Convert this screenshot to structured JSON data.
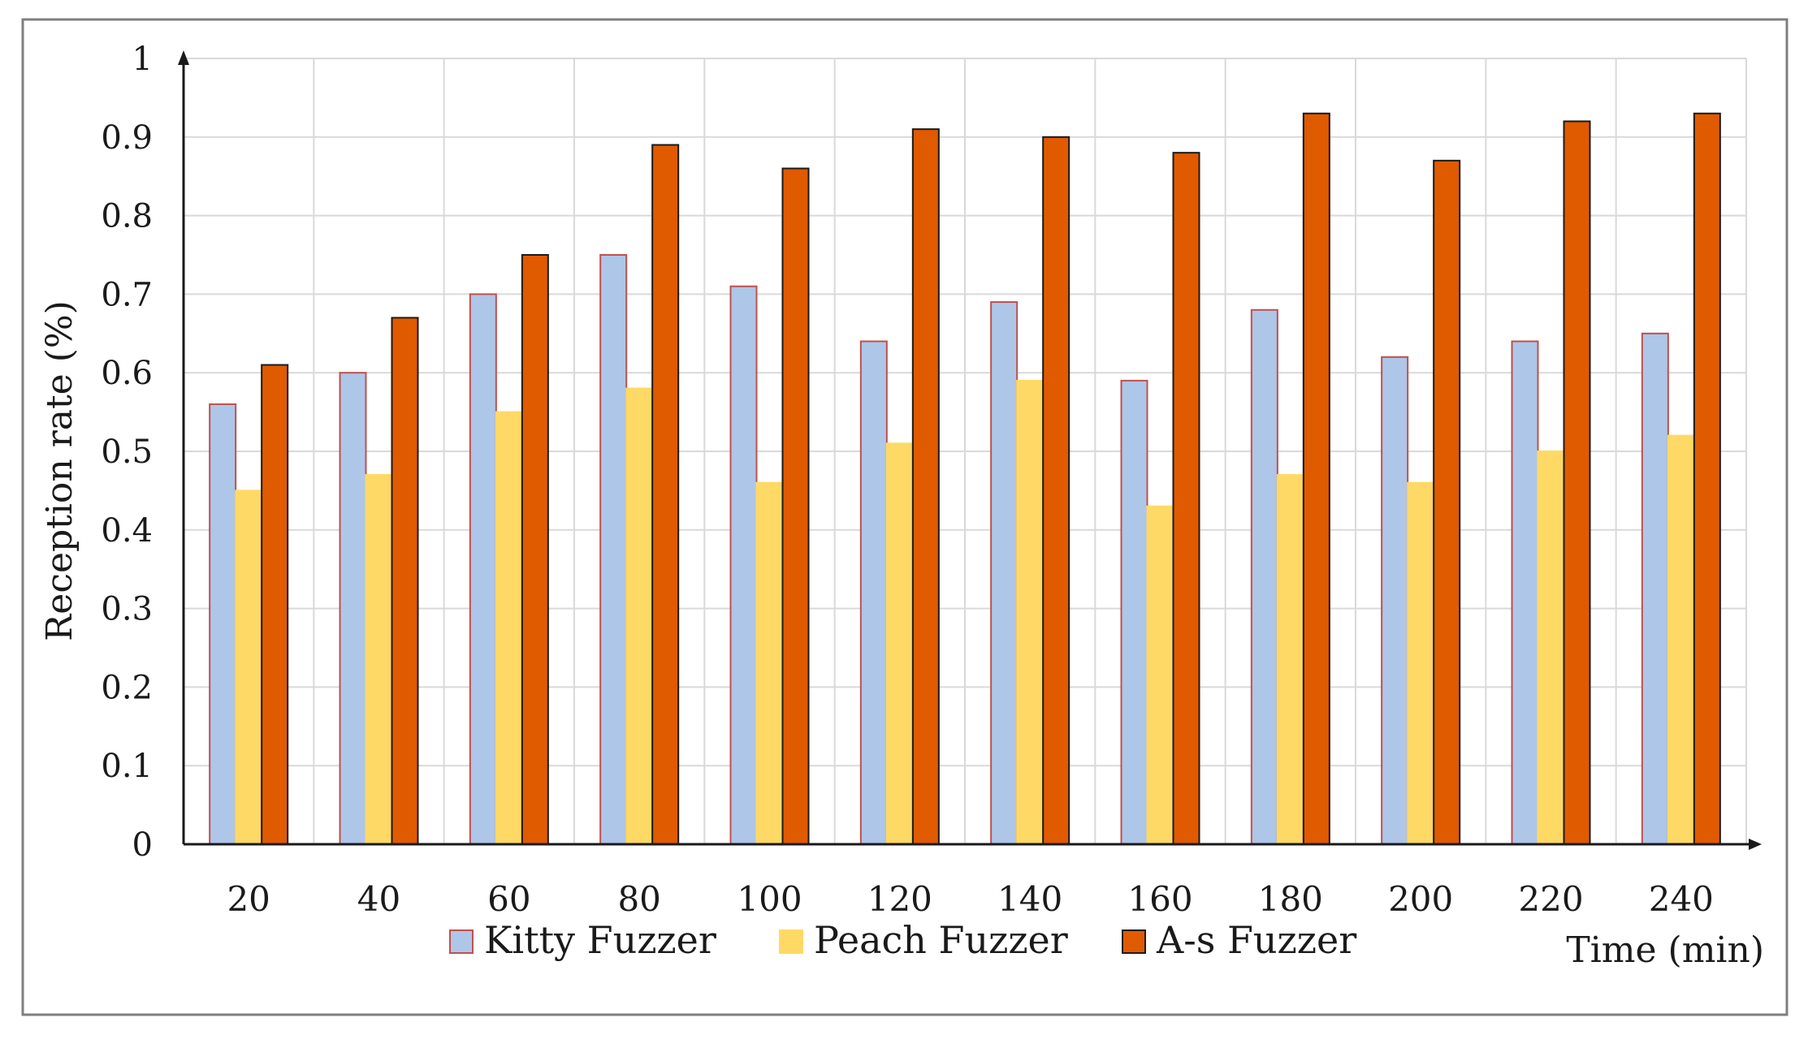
{
  "chart_data": {
    "type": "bar",
    "title": "",
    "xlabel": "Time (min)",
    "ylabel": "Reception rate (%)",
    "ylim": [
      0,
      1
    ],
    "yticks": [
      "0",
      "0.1",
      "0.2",
      "0.3",
      "0.4",
      "0.5",
      "0.6",
      "0.7",
      "0.8",
      "0.9",
      "1"
    ],
    "categories": [
      "20",
      "40",
      "60",
      "80",
      "100",
      "120",
      "140",
      "160",
      "180",
      "200",
      "220",
      "240"
    ],
    "grid": true,
    "legend_position": "bottom",
    "series": [
      {
        "name": "Kitty Fuzzer",
        "color": "#aec6e8",
        "stroke": "#c0504d",
        "values": [
          0.56,
          0.6,
          0.7,
          0.75,
          0.71,
          0.64,
          0.69,
          0.59,
          0.68,
          0.62,
          0.64,
          0.65
        ]
      },
      {
        "name": "Peach Fuzzer",
        "color": "#ffd966",
        "stroke": "#ffd966",
        "values": [
          0.45,
          0.47,
          0.55,
          0.58,
          0.46,
          0.51,
          0.59,
          0.43,
          0.47,
          0.46,
          0.5,
          0.52
        ]
      },
      {
        "name": "A-s Fuzzer",
        "color": "#e05a00",
        "stroke": "#1a1a1a",
        "values": [
          0.61,
          0.67,
          0.75,
          0.89,
          0.86,
          0.91,
          0.9,
          0.88,
          0.93,
          0.87,
          0.92,
          0.93
        ]
      }
    ]
  }
}
